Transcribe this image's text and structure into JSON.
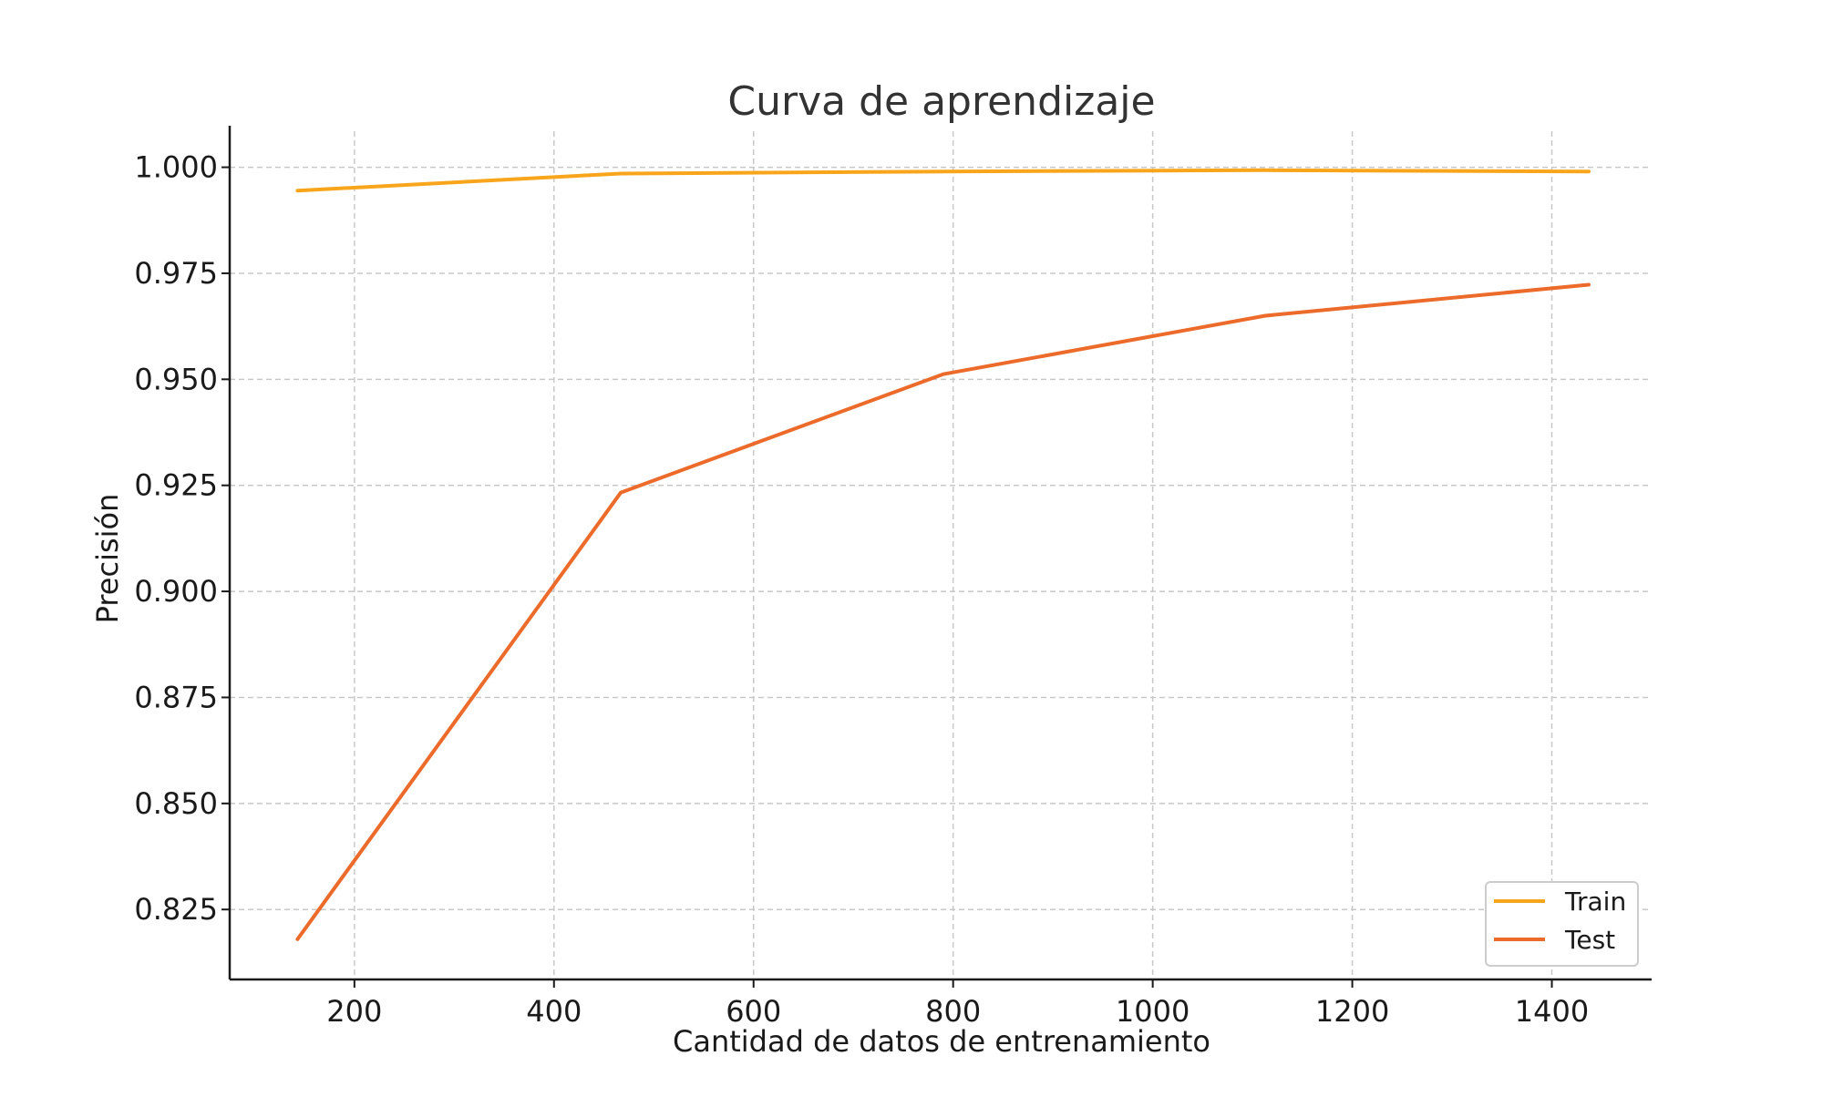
{
  "chart_data": {
    "type": "line",
    "title": "Curva de aprendizaje",
    "xlabel": "Cantidad de datos de entrenamiento",
    "ylabel": "Precisión",
    "xlim": [
      75,
      1500
    ],
    "ylim": [
      0.8085,
      1.0085
    ],
    "xticks": [
      200,
      400,
      600,
      800,
      1000,
      1200,
      1400
    ],
    "yticks": [
      0.825,
      0.85,
      0.875,
      0.9,
      0.925,
      0.95,
      0.975,
      1.0
    ],
    "xtick_labels": [
      "200",
      "400",
      "600",
      "800",
      "1000",
      "1200",
      "1400"
    ],
    "ytick_labels": [
      "0.825",
      "0.850",
      "0.875",
      "0.900",
      "0.925",
      "0.950",
      "0.975",
      "1.000"
    ],
    "grid": true,
    "legend_position": "lower-right",
    "series": [
      {
        "name": "Train",
        "color": "#F8A51B",
        "x": [
          143,
          467,
          790,
          1113,
          1437
        ],
        "y": [
          0.9945,
          0.9985,
          0.999,
          0.9993,
          0.999
        ]
      },
      {
        "name": "Test",
        "color": "#EC6A2A",
        "x": [
          143,
          467,
          790,
          1113,
          1437
        ],
        "y": [
          0.818,
          0.9233,
          0.9512,
          0.965,
          0.9723
        ]
      }
    ]
  }
}
